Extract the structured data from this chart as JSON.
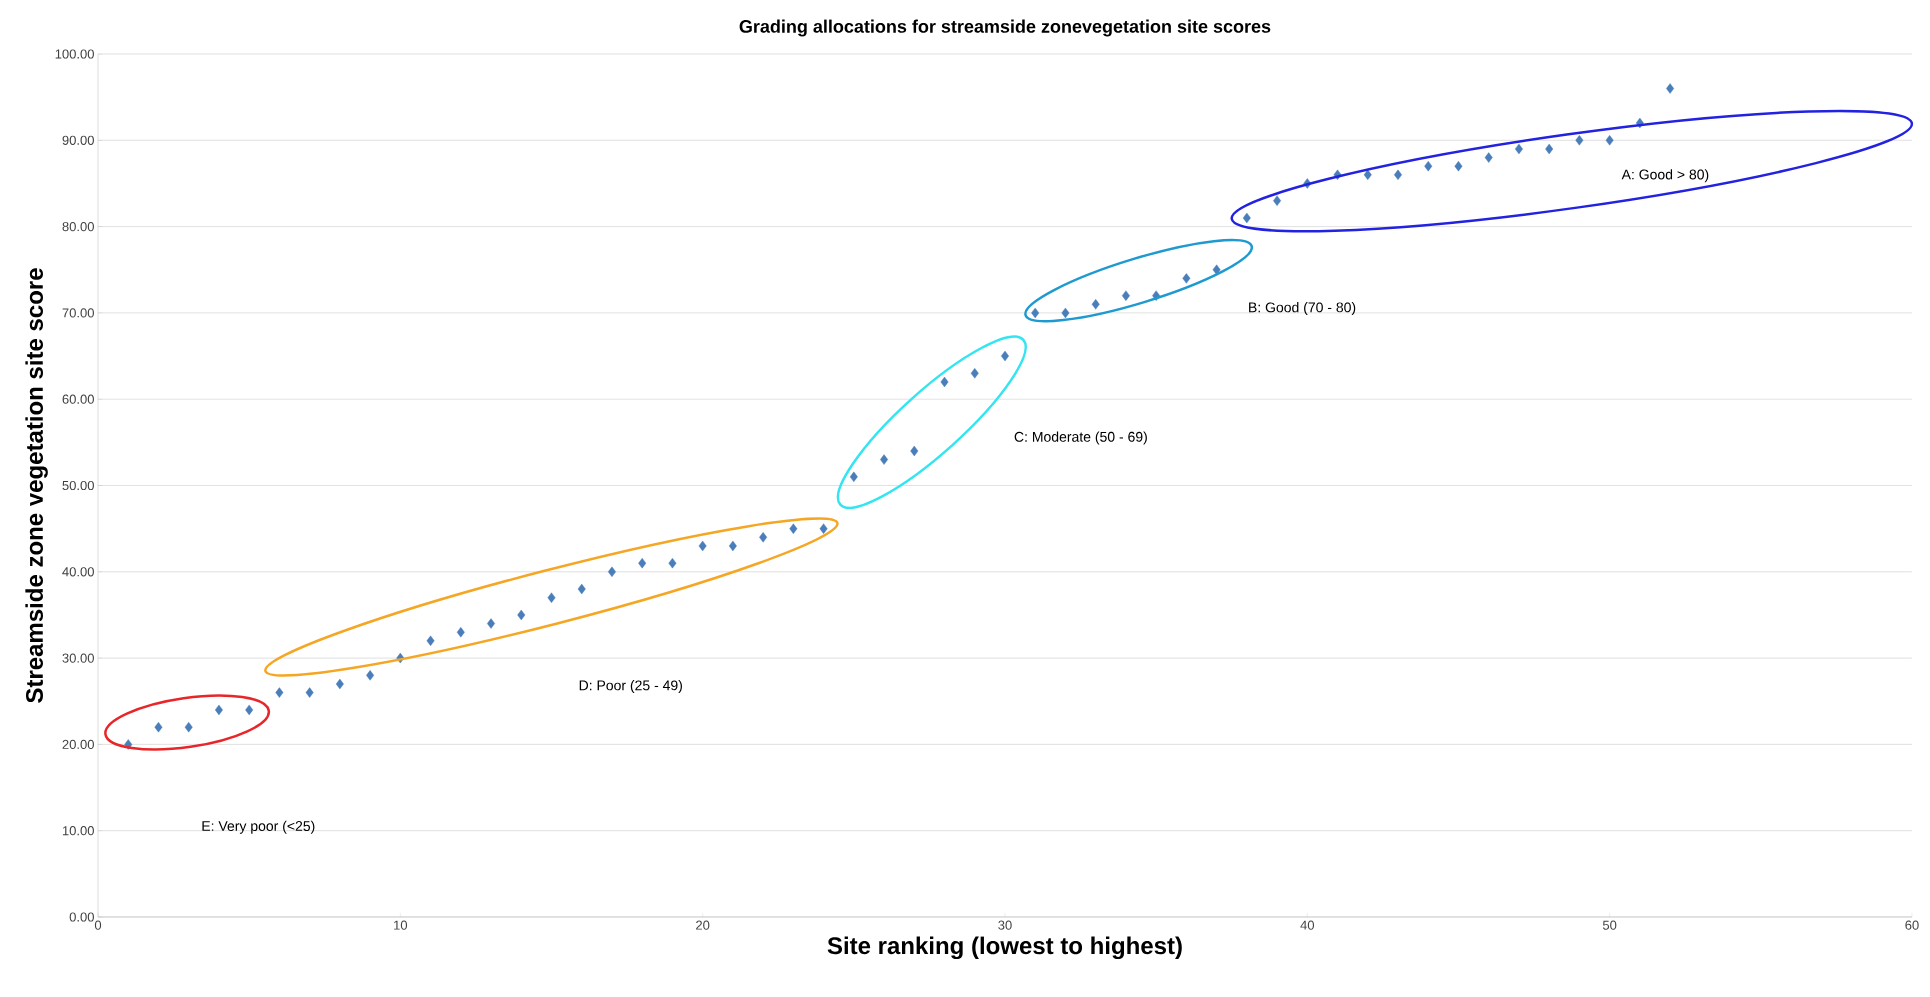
{
  "chart_data": {
    "type": "scatter",
    "title": "Grading allocations for streamside zonevegetation  site scores",
    "xlabel": "Site ranking (lowest to highest)",
    "ylabel": "Streamside zone vegetation site score",
    "xlim": [
      0,
      60
    ],
    "xticks": [
      0,
      10,
      20,
      30,
      40,
      50,
      60
    ],
    "ylim": [
      0,
      100
    ],
    "yticks": [
      {
        "value": 0,
        "label": "0.00"
      },
      {
        "value": 10,
        "label": "10.00"
      },
      {
        "value": 20,
        "label": "20.00"
      },
      {
        "value": 30,
        "label": "30.00"
      },
      {
        "value": 40,
        "label": "40.00"
      },
      {
        "value": 50,
        "label": "50.00"
      },
      {
        "value": 60,
        "label": "60.00"
      },
      {
        "value": 70,
        "label": "70.00"
      },
      {
        "value": 80,
        "label": "80.00"
      },
      {
        "value": 90,
        "label": "90.00"
      },
      {
        "value": 100,
        "label": "100.00"
      }
    ],
    "grid": "y",
    "series": [
      {
        "type": "scatter",
        "color": "#4a7ebb",
        "marker": "diamond",
        "x": [
          1,
          2,
          3,
          4,
          5,
          6,
          7,
          8,
          9,
          10,
          11,
          12,
          13,
          14,
          15,
          16,
          17,
          18,
          19,
          20,
          21,
          22,
          23,
          24,
          25,
          26,
          27,
          28,
          29,
          30,
          31,
          32,
          33,
          34,
          35,
          36,
          37,
          38,
          39,
          40,
          41,
          42,
          43,
          44,
          45,
          46,
          47,
          48,
          49,
          50,
          51,
          52
        ],
        "values": [
          20,
          22,
          22,
          24,
          24,
          26,
          26,
          27,
          28,
          30,
          32,
          33,
          34,
          35,
          37,
          38,
          40,
          41,
          41,
          43,
          43,
          44,
          45,
          45,
          51,
          53,
          54,
          62,
          63,
          65,
          70,
          70,
          71,
          72,
          72,
          74,
          75,
          81,
          83,
          85,
          86,
          86,
          86,
          87,
          87,
          88,
          89,
          89,
          90,
          90,
          92,
          96
        ]
      }
    ],
    "annotations": [
      "A: Good > 80)",
      "B: Good (70 - 80)",
      "C: Moderate (50 - 69)",
      "D: Poor (25 - 49)",
      "E: Very poor (<25)"
    ]
  }
}
